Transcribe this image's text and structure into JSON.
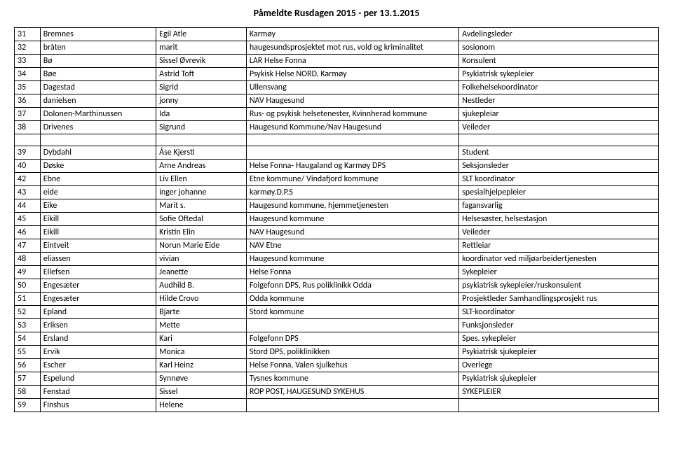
{
  "title": "Påmeldte Rusdagen 2015 - per 13.1.2015",
  "columns": [
    "num",
    "lastname",
    "firstname",
    "org",
    "role"
  ],
  "rows1": [
    [
      "31",
      "Bremnes",
      "Egil Atle",
      "Karmøy",
      "Avdelingsleder"
    ],
    [
      "32",
      "bråten",
      "marit",
      "haugesundsprosjektet mot rus, vold og kriminalitet",
      "sosionom"
    ],
    [
      "33",
      "Bø",
      "Sissel Øvrevik",
      "LAR Helse Fonna",
      "Konsulent"
    ],
    [
      "34",
      "Bøe",
      "Astrid Toft",
      "Psykisk Helse NORD, Karmøy",
      "Psykiatrisk sykepleier"
    ],
    [
      "35",
      "Dagestad",
      "Sigrid",
      "Ullensvang",
      "Folkehelsekoordinator"
    ],
    [
      "36",
      "danielsen",
      "jonny",
      "NAV Haugesund",
      "Nestleder"
    ],
    [
      "37",
      "Dolonen-Marthinussen",
      "Ida",
      "Rus- og psykisk helsetenester, Kvinnherad kommune",
      "sjukepleiar"
    ],
    [
      "38",
      "Drivenes",
      "Sigrund",
      "Haugesund Kommune/Nav Haugesund",
      "Veileder"
    ]
  ],
  "rows2": [
    [
      "39",
      "Dybdahl",
      "Åse Kjersti",
      "",
      "Student"
    ],
    [
      "40",
      "Døske",
      "Arne Andreas",
      "Helse Fonna- Haugaland og Karmøy DPS",
      "Seksjonsleder"
    ],
    [
      "42",
      "Ebne",
      "Liv Ellen",
      "Etne kommune/ Vindafjord kommune",
      "SLT koordinator"
    ],
    [
      "43",
      "eide",
      "inger johanne",
      "karmøy.D.P.S",
      "spesialhjelpepleier"
    ],
    [
      "44",
      "Eike",
      "Marit s.",
      "Haugesund kommune, hjemmetjenesten",
      "fagansvarlig"
    ],
    [
      "45",
      "Eikill",
      "Sofie Oftedal",
      "Haugesund kommune",
      "Helsesøster, helsestasjon"
    ],
    [
      "46",
      "Eikill",
      "Kristin Elin",
      "NAV Haugesund",
      "Veileder"
    ],
    [
      "47",
      "Eintveit",
      "Norun Marie Eide",
      "NAV Etne",
      "Rettleiar"
    ],
    [
      "48",
      "eliassen",
      "vivian",
      "Haugesund kommune",
      "koordinator ved miljøarbeidertjenesten"
    ],
    [
      "49",
      "Ellefsen",
      "Jeanette",
      "Helse Fonna",
      "Sykepleier"
    ],
    [
      "50",
      "Engesæter",
      "Audhild B.",
      "Folgefonn DPS, Rus poliklinikk Odda",
      "psykiatrisk sykepleier/ruskonsulent"
    ],
    [
      "51",
      "Engesæter",
      "Hilde Crovo",
      "Odda kommune",
      "Prosjektleder Samhandlingsprosjekt rus"
    ],
    [
      "52",
      "Epland",
      "Bjarte",
      "Stord kommune",
      "SLT-koordinator"
    ],
    [
      "53",
      "Eriksen",
      "Mette",
      "",
      "Funksjonsleder"
    ],
    [
      "54",
      "Ersland",
      "Kari",
      "Folgefonn DPS",
      "Spes. sykepleier"
    ],
    [
      "55",
      "Ervik",
      "Monica",
      "Stord DPS, poliklinikken",
      "Psykiatrisk sjukepleier"
    ],
    [
      "56",
      "Escher",
      "Karl Heinz",
      "Helse Fonna, Valen sjulkehus",
      "Overlege"
    ],
    [
      "57",
      "Espelund",
      "Synnøve",
      "Tysnes kommune",
      "Psykiatrisk sjukepleier"
    ],
    [
      "58",
      "Fenstad",
      "Sissel",
      "ROP POST, HAUGESUND SYKEHUS",
      "SYKEPLEIER"
    ],
    [
      "59",
      "Finshus",
      "Helene",
      "",
      ""
    ]
  ]
}
